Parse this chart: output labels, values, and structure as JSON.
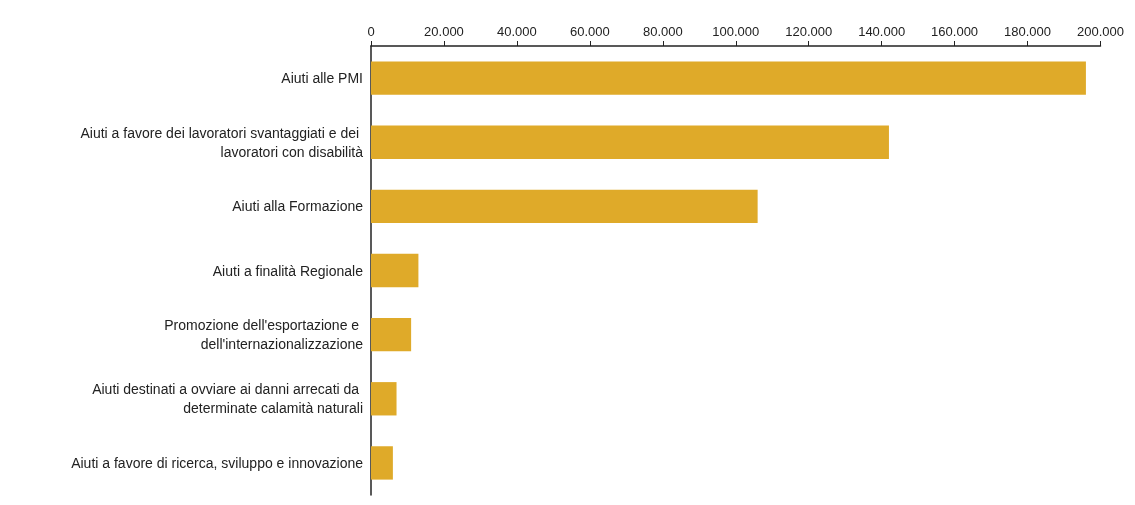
{
  "chart_data": {
    "type": "bar",
    "orientation": "horizontal",
    "categories": [
      "Aiuti alle PMI",
      "Aiuti a favore dei lavoratori svantaggiati e dei lavoratori con disabilità",
      "Aiuti alla Formazione",
      "Aiuti a finalità Regionale",
      "Promozione dell'esportazione e dell'internazionalizzazione",
      "Aiuti destinati a ovviare ai danni arrecati da determinate calamità naturali",
      "Aiuti a favore di ricerca, sviluppo e innovazione"
    ],
    "values": [
      196000,
      142000,
      106000,
      13000,
      11000,
      7000,
      6000
    ],
    "color": "#dfaa29",
    "xlim": [
      0,
      200000
    ],
    "xticks": [
      0,
      {
        "value": 20000,
        "label": "20.000"
      },
      {
        "value": 40000,
        "label": "40.000"
      },
      {
        "value": 60000,
        "label": "60.000"
      },
      {
        "value": 80000,
        "label": "80.000"
      },
      {
        "value": 100000,
        "label": "100.000"
      },
      {
        "value": 120000,
        "label": "120.000"
      },
      {
        "value": 140000,
        "label": "140.000"
      },
      {
        "value": 160000,
        "label": "160.000"
      },
      {
        "value": 180000,
        "label": "180.000"
      },
      {
        "value": 200000,
        "label": "200.000"
      }
    ],
    "grid": false
  }
}
